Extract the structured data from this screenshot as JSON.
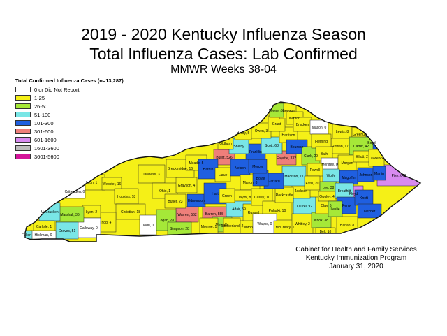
{
  "title_line1": "2019 - 2020 Kentucky Influenza Season",
  "title_line2": "Total Influenza Cases: Lab Confirmed",
  "title_line3": "MMWR Weeks 38-04",
  "legend": {
    "title": "Total Confirmed Influenza Cases (n=13,287)",
    "items": [
      {
        "label": "0 or Did Not Report",
        "color": "#ffffff"
      },
      {
        "label": "1-25",
        "color": "#f5f017"
      },
      {
        "label": "26-50",
        "color": "#a5e838"
      },
      {
        "label": "51-100",
        "color": "#79e6e6"
      },
      {
        "label": "101-300",
        "color": "#1f5fe0"
      },
      {
        "label": "301-600",
        "color": "#ee7f7a"
      },
      {
        "label": "601-1600",
        "color": "#d88af0"
      },
      {
        "label": "1601-3600",
        "color": "#bdbdbd"
      },
      {
        "label": "3601-5600",
        "color": "#d4149a"
      }
    ]
  },
  "counties": [
    {
      "label": "Pike, 649",
      "color": "#d88af0"
    },
    {
      "label": "Warren, 562",
      "color": "#ee7f7a"
    },
    {
      "label": "Barren, 555",
      "color": "#ee7f7a"
    },
    {
      "label": "Bullitt, 526",
      "color": "#ee7f7a"
    },
    {
      "label": "Fayette, 332",
      "color": "#ee7f7a"
    },
    {
      "label": "Floyd",
      "color": "#d88af0"
    },
    {
      "label": "Union, 1",
      "color": "#f5f017"
    },
    {
      "label": "Webster, 16",
      "color": "#f5f017"
    },
    {
      "label": "Daviess, 3",
      "color": "#f5f017"
    },
    {
      "label": "Ohio, 1",
      "color": "#f5f017"
    },
    {
      "label": "Grayson, 4",
      "color": "#f5f017"
    },
    {
      "label": "Breckinridge, 16",
      "color": "#f5f017"
    },
    {
      "label": "Hopkins, 18",
      "color": "#f5f017"
    },
    {
      "label": "Christian, 18",
      "color": "#f5f017"
    },
    {
      "label": "Trigg, 4",
      "color": "#f5f017"
    },
    {
      "label": "Lyon, 2",
      "color": "#f5f017"
    },
    {
      "label": "Calloway, 0",
      "color": "#ffffff"
    },
    {
      "label": "Crittenden, 0",
      "color": "#ffffff"
    },
    {
      "label": "Todd, 0",
      "color": "#ffffff"
    },
    {
      "label": "Marshall, 36",
      "color": "#a5e838"
    },
    {
      "label": "Graves, 51",
      "color": "#79e6e6"
    },
    {
      "label": "McCracken",
      "color": "#79e6e6"
    },
    {
      "label": "Carlisle, 1",
      "color": "#f5f017"
    },
    {
      "label": "Hickman, 0",
      "color": "#ffffff"
    },
    {
      "label": "Fulton",
      "color": "#79e6e6"
    },
    {
      "label": "Logan, 28",
      "color": "#a5e838"
    },
    {
      "label": "Simpson, 28",
      "color": "#a5e838"
    },
    {
      "label": "Butler, 23",
      "color": "#f5f017"
    },
    {
      "label": "Edmonson",
      "color": "#1f5fe0"
    },
    {
      "label": "Hart",
      "color": "#1f5fe0"
    },
    {
      "label": "Meade, 5",
      "color": "#f5f017"
    },
    {
      "label": "Hardin",
      "color": "#1f5fe0"
    },
    {
      "label": "Larue",
      "color": "#f5f017"
    },
    {
      "label": "Nelson",
      "color": "#1f5fe0"
    },
    {
      "label": "Marion, 8",
      "color": "#f5f017"
    },
    {
      "label": "Taylor, 8",
      "color": "#f5f017"
    },
    {
      "label": "Adair, 59",
      "color": "#79e6e6"
    },
    {
      "label": "Green",
      "color": "#f5f017"
    },
    {
      "label": "Metcalfe",
      "color": "#a5e838"
    },
    {
      "label": "Monroe, 1",
      "color": "#f5f017"
    },
    {
      "label": "Cumberland, 2",
      "color": "#f5f017"
    },
    {
      "label": "Clinton",
      "color": "#f5f017"
    },
    {
      "label": "Russell",
      "color": "#f5f017"
    },
    {
      "label": "Casey, 11",
      "color": "#f5f017"
    },
    {
      "label": "Pulaski, 10",
      "color": "#f5f017"
    },
    {
      "label": "Wayne, 0",
      "color": "#ffffff"
    },
    {
      "label": "McCreary, 1",
      "color": "#f5f017"
    },
    {
      "label": "Laurel, 92",
      "color": "#79e6e6"
    },
    {
      "label": "Whitley, 2",
      "color": "#f5f017"
    },
    {
      "label": "Knox, 38",
      "color": "#a5e838"
    },
    {
      "label": "Bell, 10",
      "color": "#f5f017"
    },
    {
      "label": "Harlan, 8",
      "color": "#f5f017"
    },
    {
      "label": "Clay, 6",
      "color": "#f5f017"
    },
    {
      "label": "Jackson",
      "color": "#f5f017"
    },
    {
      "label": "Rockcastle",
      "color": "#f5f017"
    },
    {
      "label": "Madison, 77",
      "color": "#79e6e6"
    },
    {
      "label": "Garrard",
      "color": "#1f5fe0"
    },
    {
      "label": "Boyle",
      "color": "#1f5fe0"
    },
    {
      "label": "Mercer",
      "color": "#1f5fe0"
    },
    {
      "label": "Franklin",
      "color": "#1f5fe0"
    },
    {
      "label": "Scott, 68",
      "color": "#79e6e6"
    },
    {
      "label": "Harrison",
      "color": "#f5f017"
    },
    {
      "label": "Bourbon",
      "color": "#1f5fe0"
    },
    {
      "label": "Clark, 29",
      "color": "#a5e838"
    },
    {
      "label": "Shelby",
      "color": "#79e6e6"
    },
    {
      "label": "Oldham",
      "color": "#f5f017"
    },
    {
      "label": "Henry, 5",
      "color": "#f5f017"
    },
    {
      "label": "Owen, 3",
      "color": "#f5f017"
    },
    {
      "label": "Grant",
      "color": "#f5f017"
    },
    {
      "label": "Campbell",
      "color": "#f5f017"
    },
    {
      "label": "Boone, 30",
      "color": "#a5e838"
    },
    {
      "label": "Kenton",
      "color": "#f5f017"
    },
    {
      "label": "Bracken",
      "color": "#f5f017"
    },
    {
      "label": "Mason, 0",
      "color": "#ffffff"
    },
    {
      "label": "Lewis, 8",
      "color": "#f5f017"
    },
    {
      "label": "Greenup",
      "color": "#f5f017"
    },
    {
      "label": "Boyd",
      "color": "#1f5fe0"
    },
    {
      "label": "Carter, 42",
      "color": "#a5e838"
    },
    {
      "label": "Rowan, 17",
      "color": "#f5f017"
    },
    {
      "label": "Fleming",
      "color": "#f5f017"
    },
    {
      "label": "Bath",
      "color": "#f5f017"
    },
    {
      "label": "Menifee, 0",
      "color": "#ffffff"
    },
    {
      "label": "Morgan",
      "color": "#f5f017"
    },
    {
      "label": "Elliott, 2",
      "color": "#f5f017"
    },
    {
      "label": "Lawrence",
      "color": "#f5f017"
    },
    {
      "label": "Johnson",
      "color": "#1f5fe0"
    },
    {
      "label": "Martin",
      "color": "#1f5fe0"
    },
    {
      "label": "Magoffin",
      "color": "#1f5fe0"
    },
    {
      "label": "Wolfe",
      "color": "#79e6e6"
    },
    {
      "label": "Powell",
      "color": "#f5f017"
    },
    {
      "label": "Estill, 20",
      "color": "#f5f017"
    },
    {
      "label": "Lee, 38",
      "color": "#a5e838"
    },
    {
      "label": "Owsley, 4",
      "color": "#f5f017"
    },
    {
      "label": "Breathitt",
      "color": "#79e6e6"
    },
    {
      "label": "Perry",
      "color": "#1f5fe0"
    },
    {
      "label": "Knott",
      "color": "#1f5fe0"
    },
    {
      "label": "Leslie",
      "color": "#a5e838"
    },
    {
      "label": "Letcher",
      "color": "#1f5fe0"
    }
  ],
  "credits": {
    "line1": "Cabinet for Health and Family Services",
    "line2": "Kentucky Immunization Program",
    "line3": "January 31, 2020"
  }
}
